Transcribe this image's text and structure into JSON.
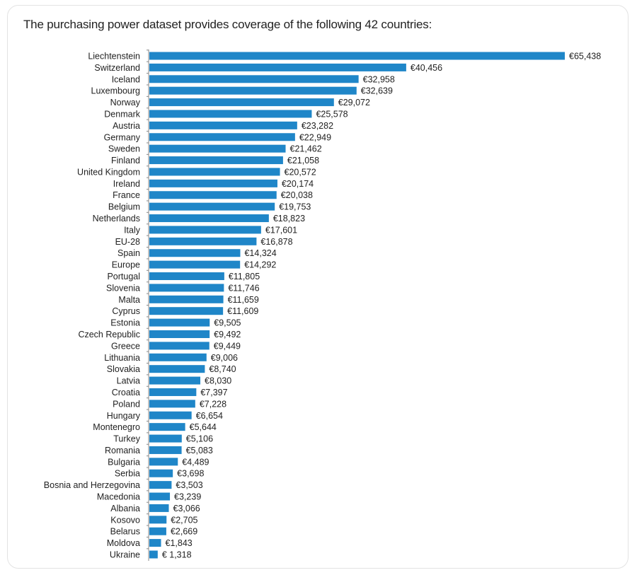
{
  "chart_data": {
    "type": "bar",
    "orientation": "horizontal",
    "title": "The purchasing power dataset provides coverage of the following 42 countries:",
    "bar_color": "#1f86c8",
    "categories": [
      "Liechtenstein",
      "Switzerland",
      "Iceland",
      "Luxembourg",
      "Norway",
      "Denmark",
      "Austria",
      "Germany",
      "Sweden",
      "Finland",
      "United Kingdom",
      "Ireland",
      "France",
      "Belgium",
      "Netherlands",
      "Italy",
      "EU-28",
      "Spain",
      "Europe",
      "Portugal",
      "Slovenia",
      "Malta",
      "Cyprus",
      "Estonia",
      "Czech Republic",
      "Greece",
      "Lithuania",
      "Slovakia",
      "Latvia",
      "Croatia",
      "Poland",
      "Hungary",
      "Montenegro",
      "Turkey",
      "Romania",
      "Bulgaria",
      "Serbia",
      "Bosnia and Herzegovina",
      "Macedonia",
      "Albania",
      "Kosovo",
      "Belarus",
      "Moldova",
      "Ukraine"
    ],
    "values": [
      65438,
      40456,
      32958,
      32639,
      29072,
      25578,
      23282,
      22949,
      21462,
      21058,
      20572,
      20174,
      20038,
      19753,
      18823,
      17601,
      16878,
      14324,
      14292,
      11805,
      11746,
      11659,
      11609,
      9505,
      9492,
      9449,
      9006,
      8740,
      8030,
      7397,
      7228,
      6654,
      5644,
      5106,
      5083,
      4489,
      3698,
      3503,
      3239,
      3066,
      2705,
      2669,
      1843,
      1318
    ],
    "data_labels": [
      "€65,438",
      "€40,456",
      "€32,958",
      "€32,639",
      "€29,072",
      "€25,578",
      "€23,282",
      "€22,949",
      "€21,462",
      "€21,058",
      "€20,572",
      "€20,174",
      "€20,038",
      "€19,753",
      "€18,823",
      "€17,601",
      "€16,878",
      "€14,324",
      "€14,292",
      "€11,805",
      "€11,746",
      "€11,659",
      "€11,609",
      "€9,505",
      "€9,492",
      "€9,449",
      "€9,006",
      "€8,740",
      "€8,030",
      "€7,397",
      "€7,228",
      "€6,654",
      "€5,644",
      "€5,106",
      "€5,083",
      "€4,489",
      "€3,698",
      "€3,503",
      "€3,239",
      "€3,066",
      "€2,705",
      "€2,669",
      "€1,843",
      "€ 1,318"
    ],
    "xlim": [
      0,
      65438
    ],
    "grid": false,
    "legend": "none"
  }
}
